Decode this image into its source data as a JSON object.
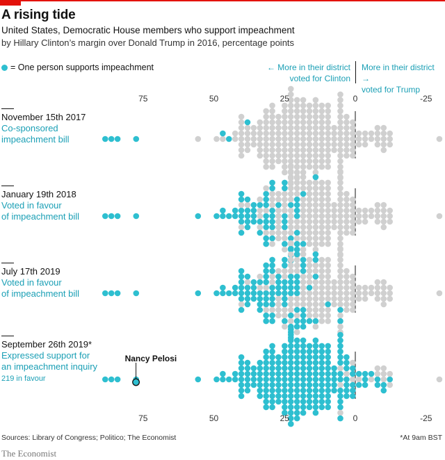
{
  "header": {
    "title": "A rising tide",
    "subtitle": "United States, Democratic House members who support impeachment",
    "subtitle2": "by Hillary Clinton’s margin over Donald Trump in 2016, percentage points"
  },
  "legend": {
    "label": "= One person supports impeachment",
    "icon": "dot-icon"
  },
  "direction": {
    "left_line1": "← More in their district",
    "left_line2": "voted for Clinton",
    "right_line1": "More in their district →",
    "right_line2": "voted for Trump"
  },
  "colors": {
    "supporter": "#2ebfd0",
    "non_supporter": "#d0d0d0",
    "accent_text": "#1a9fb5",
    "brand_red": "#e3120b"
  },
  "panels": [
    {
      "date": "November 15th 2017",
      "desc1": "Co-sponsored",
      "desc2": "impeachment bill",
      "note": ""
    },
    {
      "date": "January 19th 2018",
      "desc1": "Voted in favour",
      "desc2": "of impeachment bill",
      "note": ""
    },
    {
      "date": "July 17th 2019",
      "desc1": "Voted in favour",
      "desc2": "of impeachment bill",
      "note": ""
    },
    {
      "date": "September 26th 2019*",
      "desc1": "Expressed support for",
      "desc2": "an impeachment inquiry",
      "note": "219 in favour"
    }
  ],
  "chart_data": {
    "type": "scatter",
    "subtype": "beeswarm",
    "title": "A rising tide",
    "xlabel": "Hillary Clinton’s margin over Donald Trump in 2016, percentage points",
    "x_ticks": [
      75,
      50,
      25,
      0,
      -25
    ],
    "x_tick_labels": [
      "75",
      "50",
      "25",
      "0",
      "-25"
    ],
    "xlim": [
      88,
      -30
    ],
    "x_reversed": true,
    "total_members": 235,
    "series": [
      {
        "name": "November 15th 2017",
        "supporters": 7
      },
      {
        "name": "January 19th 2018",
        "supporters": 66
      },
      {
        "name": "July 17th 2019",
        "supporters": 95
      },
      {
        "name": "September 26th 2019",
        "supporters": 219
      }
    ],
    "annotation": {
      "label": "Nancy Pelosi",
      "x": 77.5
    }
  },
  "footer": {
    "sources": "Sources: Library of Congress; Politico; The Economist",
    "note": "*At 9am BST",
    "brand": "The Economist"
  }
}
